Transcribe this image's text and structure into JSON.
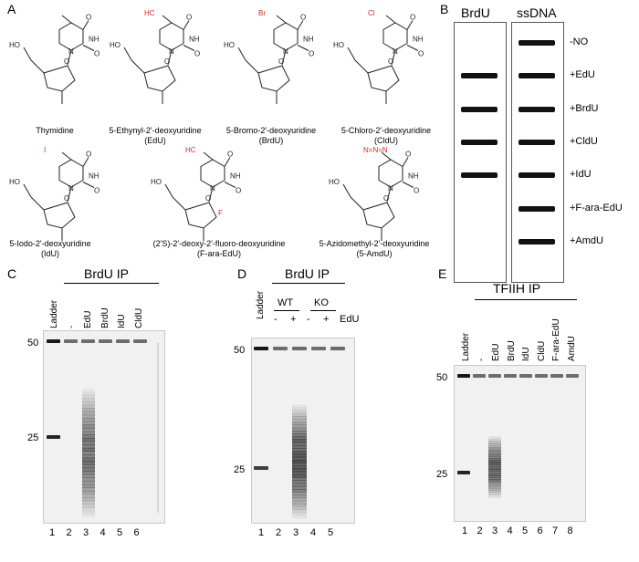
{
  "panel_a": {
    "letter": "A",
    "structures": [
      {
        "name": "Thymidine",
        "abbr": "",
        "substituent": "",
        "sub_color": "#222222"
      },
      {
        "name": "5-Ethynyl-2'-deoxyuridine",
        "abbr": "(EdU)",
        "substituent": "HC",
        "sub_color": "#d62728"
      },
      {
        "name": "5-Bromo-2'-deoxyuridine",
        "abbr": "(BrdU)",
        "substituent": "Br",
        "sub_color": "#d62728"
      },
      {
        "name": "5-Chloro-2'-deoxyuridine",
        "abbr": "(CldU)",
        "substituent": "Cl",
        "sub_color": "#d62728"
      },
      {
        "name": "5-Iodo-2'-deoxyuridine",
        "abbr": "(IdU)",
        "substituent": "I",
        "sub_color": "#d62728"
      },
      {
        "name": "(2'S)-2'-deoxy-2'-fluoro-deoxyuridine",
        "abbr": "(F-ara-EdU)",
        "substituent": "HC",
        "sub_color": "#d62728"
      },
      {
        "name": "5-Azidomethyl-2'-deoxyuridine",
        "abbr": "(5-AmdU)",
        "substituent": "N=N=N",
        "sub_color": "#d62728"
      }
    ]
  },
  "panel_b": {
    "letter": "B",
    "col1": "BrdU",
    "col2": "ssDNA",
    "rows": [
      "-NO",
      "+EdU",
      "+BrdU",
      "+CldU",
      "+IdU",
      "+F-ara-EdU",
      "+AmdU"
    ],
    "brdu_signal": [
      0,
      1,
      1,
      1,
      1,
      0,
      0
    ],
    "ssdna_signal": [
      1,
      1,
      1,
      1,
      1,
      1,
      1
    ]
  },
  "panel_c": {
    "letter": "C",
    "title": "BrdU IP",
    "lane_labels": [
      "Ladder",
      "-",
      "EdU",
      "BrdU",
      "IdU",
      "CldU"
    ],
    "lane_numbers": [
      "1",
      "2",
      "3",
      "4",
      "5",
      "6"
    ],
    "markers": [
      "50",
      "25"
    ]
  },
  "panel_d": {
    "letter": "D",
    "title": "BrdU IP",
    "ladder_label": "Ladder",
    "groups": [
      "WT",
      "KO"
    ],
    "edu_signs": [
      "-",
      "+",
      "-",
      "+"
    ],
    "edu_label": "EdU",
    "lane_numbers": [
      "1",
      "2",
      "3",
      "4",
      "5"
    ],
    "markers": [
      "50",
      "25"
    ]
  },
  "panel_e": {
    "letter": "E",
    "title": "TFIIH IP",
    "lane_labels": [
      "Ladder",
      "-",
      "EdU",
      "BrdU",
      "IdU",
      "CldU",
      "F-ara-EdU",
      "AmdU"
    ],
    "lane_numbers": [
      "1",
      "2",
      "3",
      "4",
      "5",
      "6",
      "7",
      "8"
    ],
    "markers": [
      "50",
      "25"
    ]
  },
  "atoms": {
    "ho": "HO",
    "oh": "OH",
    "o": "O",
    "n": "N",
    "nh": "NH",
    "f": "F"
  }
}
